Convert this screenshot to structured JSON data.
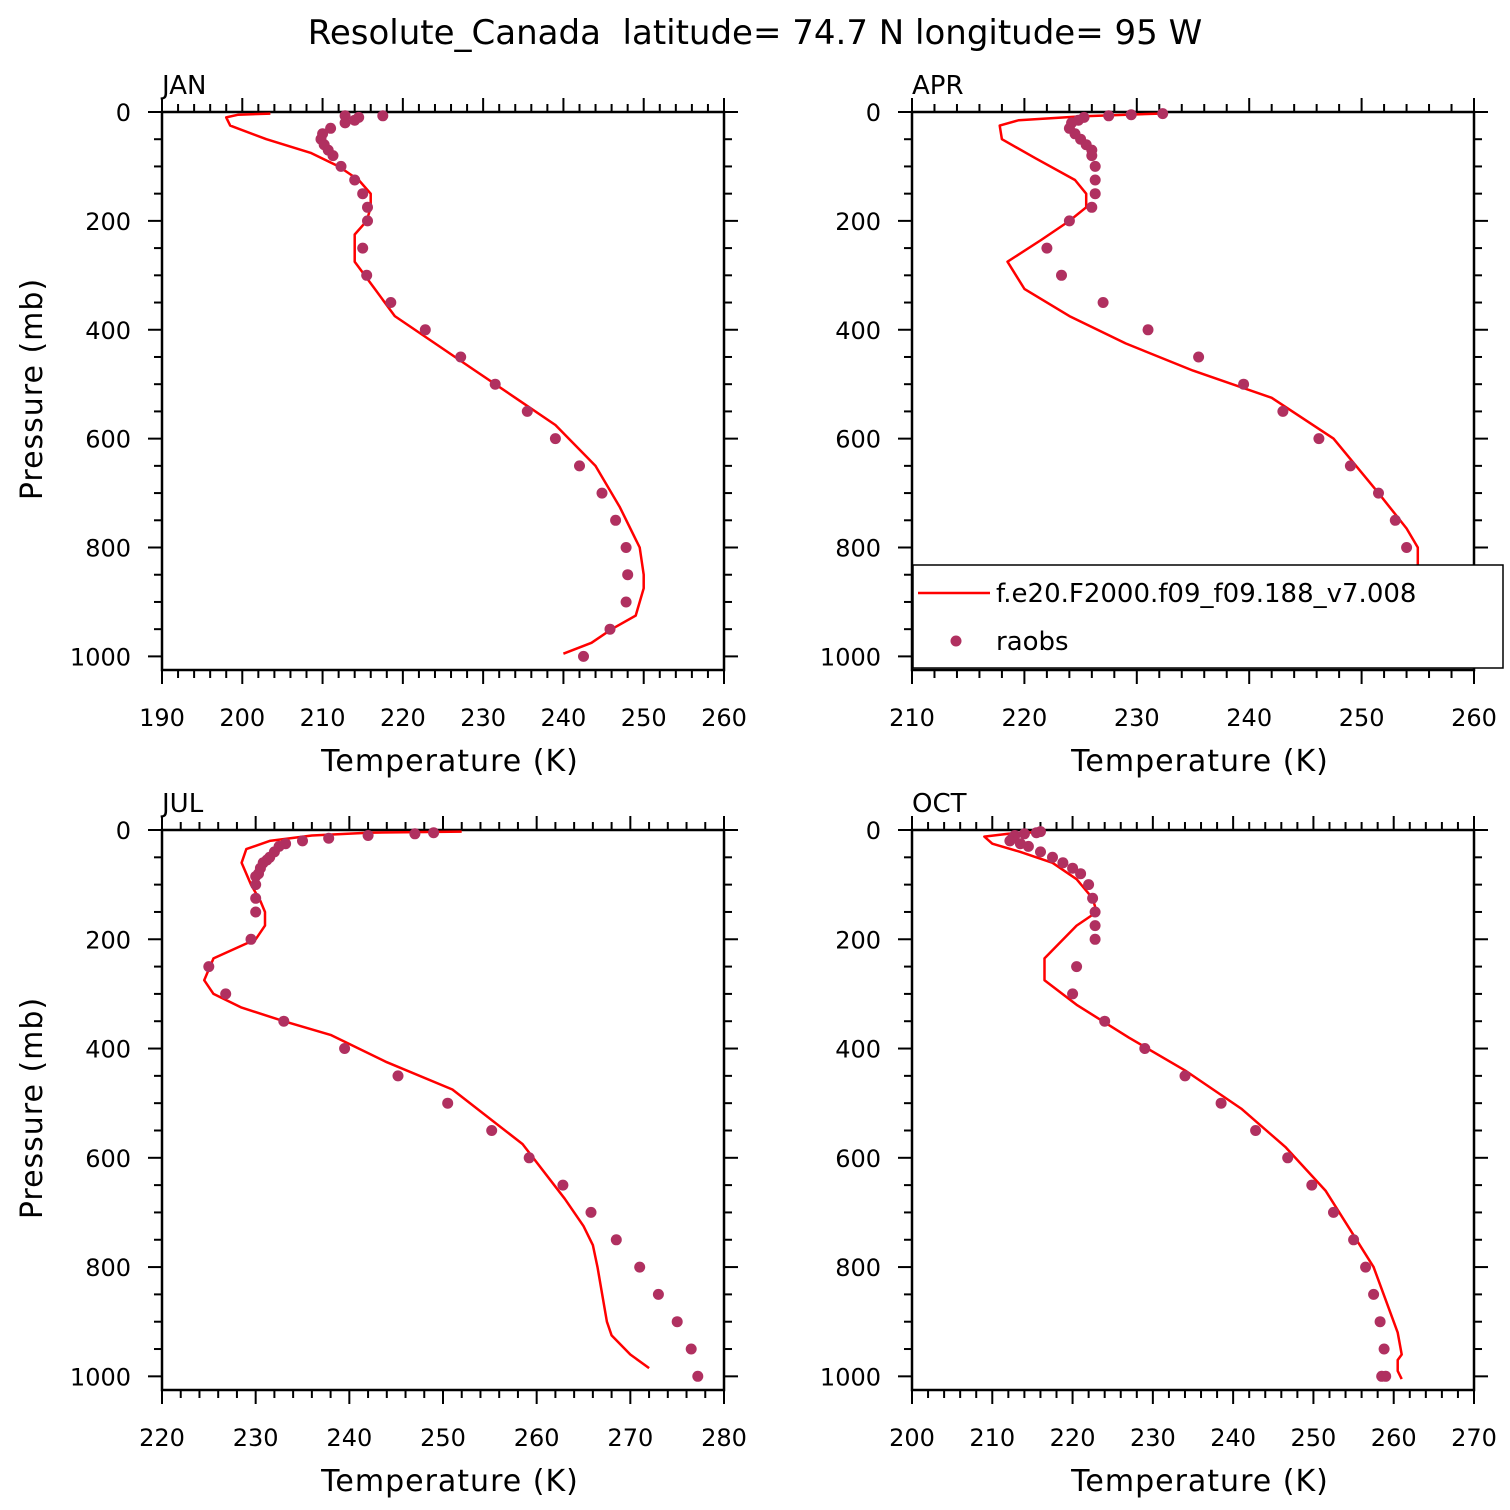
{
  "figure": {
    "title": "Resolute_Canada  latitude= 74.7 N longitude= 95 W"
  },
  "legend": {
    "model_label": "f.e20.F2000.f09_f09.188_v7.008",
    "obs_label": "raobs",
    "model_color": "#ff0000",
    "obs_color": "#b03060"
  },
  "chart_data": [
    {
      "type": "line",
      "title": "JAN",
      "xlabel": "Temperature (K)",
      "ylabel": "Pressure (mb)",
      "xlim": [
        190,
        260
      ],
      "ylim": [
        1025,
        0
      ],
      "xticks": [
        190,
        200,
        210,
        220,
        230,
        240,
        250,
        260
      ],
      "yticks": [
        0,
        200,
        400,
        600,
        800,
        1000
      ],
      "series": [
        {
          "name": "f.e20.F2000.f09_f09.188_v7.008",
          "kind": "line",
          "x": [
            203.5,
            199.5,
            198.0,
            198.5,
            203.0,
            208.5,
            212.0,
            214.5,
            216.0,
            216.0,
            215.5,
            214.0,
            214.0,
            216.5,
            219.0,
            224.0,
            229.0,
            234.0,
            239.0,
            244.0,
            247.0,
            249.5,
            250.0,
            250.0,
            249.0,
            246.0,
            243.5,
            240.0
          ],
          "y": [
            3,
            5,
            10,
            25,
            50,
            75,
            100,
            125,
            150,
            175,
            200,
            225,
            275,
            325,
            375,
            425,
            475,
            525,
            575,
            650,
            725,
            800,
            850,
            875,
            925,
            950,
            975,
            995
          ]
        },
        {
          "name": "raobs",
          "kind": "scatter",
          "x": [
            217.5,
            214.5,
            214.0,
            212.8,
            212.8,
            211.0,
            210.0,
            209.8,
            210.2,
            210.7,
            211.3,
            212.3,
            214.0,
            215.0,
            215.6,
            215.6,
            215.0,
            215.5,
            218.5,
            222.8,
            227.2,
            231.5,
            235.5,
            239.0,
            242.0,
            244.8,
            246.5,
            247.8,
            248.0,
            247.8,
            245.8,
            242.5
          ],
          "y": [
            7,
            10,
            15,
            7,
            20,
            30,
            40,
            50,
            60,
            70,
            80,
            100,
            125,
            150,
            175,
            200,
            250,
            300,
            350,
            400,
            450,
            500,
            550,
            600,
            650,
            700,
            750,
            800,
            850,
            900,
            950,
            1000
          ]
        }
      ]
    },
    {
      "type": "line",
      "title": "APR",
      "xlabel": "Temperature (K)",
      "ylabel": "Pressure (mb)",
      "xlim": [
        210,
        260
      ],
      "ylim": [
        1025,
        0
      ],
      "xticks": [
        210,
        220,
        230,
        240,
        250,
        260
      ],
      "yticks": [
        0,
        200,
        400,
        600,
        800,
        1000
      ],
      "series": [
        {
          "name": "f.e20.F2000.f09_f09.188_v7.008",
          "kind": "line",
          "x": [
            232.0,
            225.0,
            219.5,
            217.8,
            218.0,
            221.0,
            224.5,
            225.5,
            225.5,
            224.0,
            221.5,
            218.5,
            220.0,
            224.0,
            229.0,
            235.0,
            242.0,
            247.5,
            251.5,
            254.0,
            255.0,
            255.0,
            254.5,
            253.5,
            252.5,
            251.5,
            251.5
          ],
          "y": [
            3,
            8,
            15,
            25,
            50,
            85,
            125,
            150,
            175,
            200,
            235,
            275,
            325,
            375,
            425,
            475,
            525,
            600,
            700,
            765,
            800,
            850,
            900,
            925,
            950,
            975,
            995
          ]
        },
        {
          "name": "raobs",
          "kind": "scatter",
          "x": [
            232.3,
            229.5,
            227.5,
            225.3,
            224.8,
            224.2,
            224.0,
            224.5,
            225.0,
            225.5,
            226.0,
            226.0,
            226.3,
            226.3,
            226.3,
            226.0,
            224.0,
            222.0,
            223.3,
            227.0,
            231.0,
            235.5,
            239.5,
            243.0,
            246.2,
            249.0,
            251.5,
            253.0,
            254.0,
            254.2,
            253.5,
            251.0
          ],
          "y": [
            3,
            5,
            7,
            10,
            15,
            20,
            30,
            40,
            50,
            60,
            70,
            80,
            100,
            125,
            150,
            175,
            200,
            250,
            300,
            350,
            400,
            450,
            500,
            550,
            600,
            650,
            700,
            750,
            800,
            850,
            900,
            950
          ]
        }
      ]
    },
    {
      "type": "line",
      "title": "JUL",
      "xlabel": "Temperature (K)",
      "ylabel": "Pressure (mb)",
      "xlim": [
        220,
        280
      ],
      "ylim": [
        1025,
        0
      ],
      "xticks": [
        220,
        230,
        240,
        250,
        260,
        270,
        280
      ],
      "yticks": [
        0,
        200,
        400,
        600,
        800,
        1000
      ],
      "series": [
        {
          "name": "f.e20.F2000.f09_f09.188_v7.008",
          "kind": "line",
          "x": [
            252.0,
            242.0,
            236.0,
            231.5,
            229.0,
            228.5,
            229.5,
            230.5,
            231.0,
            231.0,
            230.0,
            225.5,
            224.5,
            225.5,
            228.5,
            233.0,
            238.0,
            244.0,
            251.0,
            258.5,
            263.0,
            265.0,
            266.0,
            266.5,
            267.0,
            267.5,
            268.0,
            270.0,
            272.0
          ],
          "y": [
            3,
            5,
            10,
            20,
            35,
            60,
            100,
            130,
            150,
            175,
            200,
            235,
            275,
            300,
            325,
            350,
            375,
            425,
            475,
            575,
            675,
            725,
            760,
            800,
            850,
            900,
            925,
            960,
            985
          ]
        },
        {
          "name": "raobs",
          "kind": "scatter",
          "x": [
            249.0,
            247.0,
            242.0,
            237.8,
            235.0,
            233.2,
            232.5,
            232.0,
            231.5,
            231.2,
            230.8,
            230.5,
            230.3,
            230.0,
            230.0,
            230.0,
            230.0,
            229.5,
            225.0,
            226.8,
            233.0,
            239.5,
            245.2,
            250.5,
            255.2,
            259.2,
            262.8,
            265.8,
            268.5,
            271.0,
            273.0,
            275.0,
            276.5,
            277.2
          ],
          "y": [
            5,
            7,
            10,
            15,
            20,
            25,
            30,
            40,
            50,
            55,
            60,
            70,
            80,
            85,
            100,
            125,
            150,
            200,
            250,
            300,
            350,
            400,
            450,
            500,
            550,
            600,
            650,
            700,
            750,
            800,
            850,
            900,
            950,
            1000
          ]
        }
      ]
    },
    {
      "type": "line",
      "title": "OCT",
      "xlabel": "Temperature (K)",
      "ylabel": "Pressure (mb)",
      "xlim": [
        200,
        270
      ],
      "ylim": [
        1025,
        0
      ],
      "xticks": [
        200,
        210,
        220,
        230,
        240,
        250,
        260,
        270
      ],
      "yticks": [
        0,
        200,
        400,
        600,
        800,
        1000
      ],
      "series": [
        {
          "name": "f.e20.F2000.f09_f09.188_v7.008",
          "kind": "line",
          "x": [
            216.5,
            212.0,
            209.0,
            210.0,
            213.5,
            217.5,
            220.5,
            222.5,
            223.0,
            220.5,
            216.5,
            216.5,
            220.5,
            227.0,
            234.0,
            241.0,
            246.5,
            251.5,
            254.5,
            257.5,
            259.0,
            260.5,
            261.0,
            260.5,
            260.5,
            261.0
          ],
          "y": [
            3,
            7,
            12,
            25,
            40,
            60,
            90,
            125,
            150,
            175,
            235,
            275,
            320,
            380,
            440,
            510,
            580,
            660,
            730,
            800,
            860,
            920,
            960,
            970,
            990,
            1005
          ]
        },
        {
          "name": "raobs",
          "kind": "scatter",
          "x": [
            216.0,
            215.5,
            214.0,
            212.8,
            212.5,
            212.2,
            213.5,
            214.5,
            216.0,
            217.5,
            218.8,
            220.0,
            221.0,
            222.0,
            222.5,
            222.8,
            222.8,
            222.8,
            220.5,
            220.0,
            224.0,
            229.0,
            234.0,
            238.5,
            242.8,
            246.8,
            249.8,
            252.5,
            255.0,
            256.5,
            257.5,
            258.3,
            258.8,
            259.0,
            258.5
          ],
          "y": [
            3,
            5,
            7,
            10,
            15,
            20,
            25,
            30,
            40,
            50,
            60,
            70,
            80,
            100,
            125,
            150,
            175,
            200,
            250,
            300,
            350,
            400,
            450,
            500,
            550,
            600,
            650,
            700,
            750,
            800,
            850,
            900,
            950,
            1000,
            1000
          ]
        }
      ]
    }
  ]
}
